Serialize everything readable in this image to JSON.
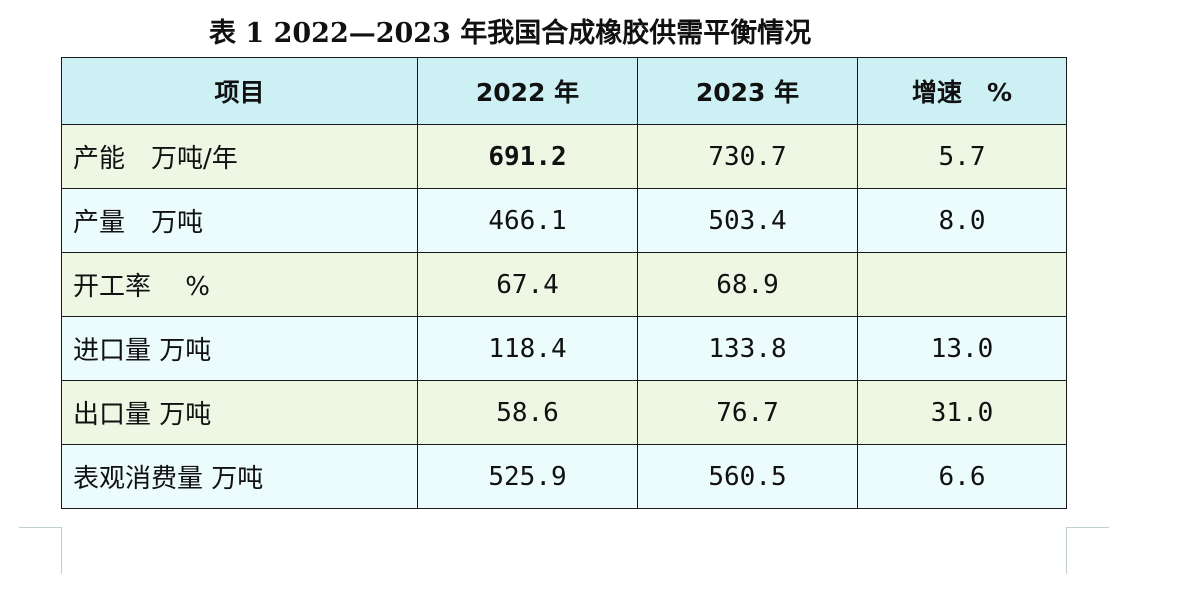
{
  "title": "表 1 2022—2023 年我国合成橡胶供需平衡情况",
  "table": {
    "headers": [
      "项目",
      "2022 年",
      "2023 年",
      "增速　%"
    ],
    "rows": [
      {
        "item": "产能　万吨/年",
        "y2022": "691.2",
        "y2023": "730.7",
        "growth": "5.7"
      },
      {
        "item": "产量　万吨",
        "y2022": "466.1",
        "y2023": "503.4",
        "growth": "8.0"
      },
      {
        "item": "开工率　 %",
        "y2022": "67.4",
        "y2023": "68.9",
        "growth": ""
      },
      {
        "item": "进口量 万吨",
        "y2022": "118.4",
        "y2023": "133.8",
        "growth": "13.0"
      },
      {
        "item": "出口量 万吨",
        "y2022": "58.6",
        "y2023": "76.7",
        "growth": "31.0"
      },
      {
        "item": "表观消费量 万吨",
        "y2022": "525.9",
        "y2023": "560.5",
        "growth": "6.6"
      }
    ]
  },
  "colors": {
    "header_bg": "#cdf0f4",
    "row_green": "#eef7e4",
    "row_cyan": "#ecfbfb",
    "border": "#1a1a1a"
  }
}
